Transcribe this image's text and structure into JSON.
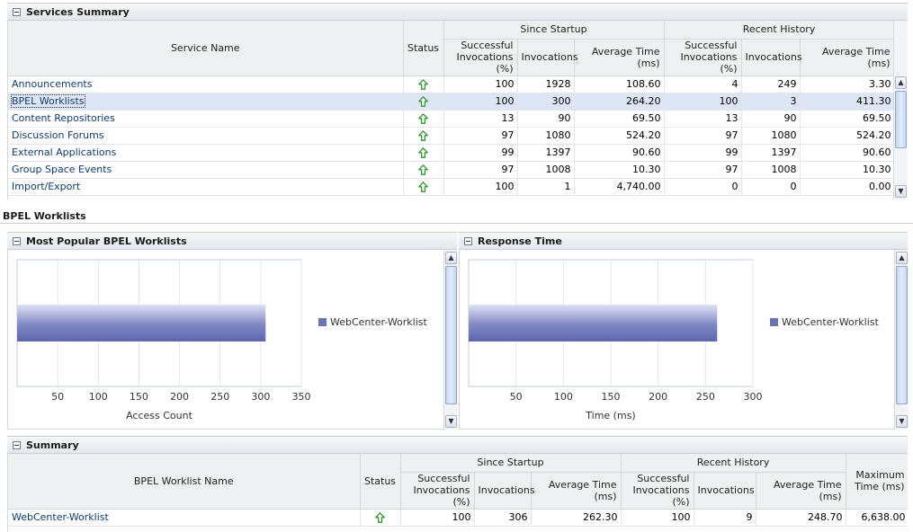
{
  "services_summary": {
    "title": "Services Summary",
    "headers": {
      "service_name": "Service Name",
      "status": "Status",
      "since_startup": "Since Startup",
      "recent_history": "Recent History",
      "successful_invocations": "Successful Invocations (%)",
      "invocations": "Invocations",
      "average_time": "Average Time (ms)"
    },
    "rows": [
      {
        "name": "Announcements",
        "status": "up",
        "s_success": "100",
        "s_inv": "1928",
        "s_avg": "108.60",
        "r_success": "4",
        "r_inv": "249",
        "r_avg": "3.30",
        "selected": false
      },
      {
        "name": "BPEL Worklists",
        "status": "up",
        "s_success": "100",
        "s_inv": "300",
        "s_avg": "264.20",
        "r_success": "100",
        "r_inv": "3",
        "r_avg": "411.30",
        "selected": true
      },
      {
        "name": "Content Repositories",
        "status": "up",
        "s_success": "13",
        "s_inv": "90",
        "s_avg": "69.50",
        "r_success": "13",
        "r_inv": "90",
        "r_avg": "69.50",
        "selected": false
      },
      {
        "name": "Discussion Forums",
        "status": "up",
        "s_success": "97",
        "s_inv": "1080",
        "s_avg": "524.20",
        "r_success": "97",
        "r_inv": "1080",
        "r_avg": "524.20",
        "selected": false
      },
      {
        "name": "External Applications",
        "status": "up",
        "s_success": "99",
        "s_inv": "1397",
        "s_avg": "90.60",
        "r_success": "99",
        "r_inv": "1397",
        "r_avg": "90.60",
        "selected": false
      },
      {
        "name": "Group Space Events",
        "status": "up",
        "s_success": "97",
        "s_inv": "1008",
        "s_avg": "10.30",
        "r_success": "97",
        "r_inv": "1008",
        "r_avg": "10.30",
        "selected": false
      },
      {
        "name": "Import/Export",
        "status": "up",
        "s_success": "100",
        "s_inv": "1",
        "s_avg": "4,740.00",
        "r_success": "0",
        "r_inv": "0",
        "r_avg": "0.00",
        "selected": false
      }
    ]
  },
  "section_title": "BPEL Worklists",
  "popular_panel": {
    "title": "Most Popular BPEL Worklists"
  },
  "response_panel": {
    "title": "Response Time"
  },
  "chart_data": [
    {
      "type": "bar",
      "orientation": "horizontal",
      "categories": [
        ""
      ],
      "series": [
        {
          "name": "WebCenter-Worklist",
          "values": [
            306
          ]
        }
      ],
      "xlabel": "Access Count",
      "ylabel": "",
      "xlim": [
        0,
        350
      ],
      "xticks": [
        "50",
        "100",
        "150",
        "200",
        "250",
        "300",
        "350"
      ],
      "grid": true,
      "legend": "right",
      "color": "#6873b8"
    },
    {
      "type": "bar",
      "orientation": "horizontal",
      "categories": [
        ""
      ],
      "series": [
        {
          "name": "WebCenter-Worklist",
          "values": [
            262.3
          ]
        }
      ],
      "xlabel": "Time (ms)",
      "ylabel": "",
      "xlim": [
        0,
        300
      ],
      "xticks": [
        "50",
        "100",
        "150",
        "200",
        "250",
        "300"
      ],
      "grid": true,
      "legend": "right",
      "color": "#6873b8"
    }
  ],
  "summary": {
    "title": "Summary",
    "headers": {
      "worklist_name": "BPEL Worklist Name",
      "status": "Status",
      "since_startup": "Since Startup",
      "recent_history": "Recent History",
      "successful_invocations": "Successful Invocations (%)",
      "invocations": "Invocations",
      "average_time": "Average Time (ms)",
      "maximum_time": "Maximum Time (ms)"
    },
    "rows": [
      {
        "name": "WebCenter-Worklist",
        "status": "up",
        "s_success": "100",
        "s_inv": "306",
        "s_avg": "262.30",
        "r_success": "100",
        "r_inv": "9",
        "r_avg": "248.70",
        "max": "6,638.00"
      }
    ]
  },
  "colors": {
    "status_up": "#2f9a2f",
    "link": "#10397a",
    "bar": "#6873b8",
    "selected_row": "#dce6f4"
  },
  "icons": {
    "status_up": "green-up-arrow-icon",
    "collapse": "collapse-minus-icon",
    "scroll_up": "scroll-up-icon",
    "scroll_down": "scroll-down-icon"
  }
}
